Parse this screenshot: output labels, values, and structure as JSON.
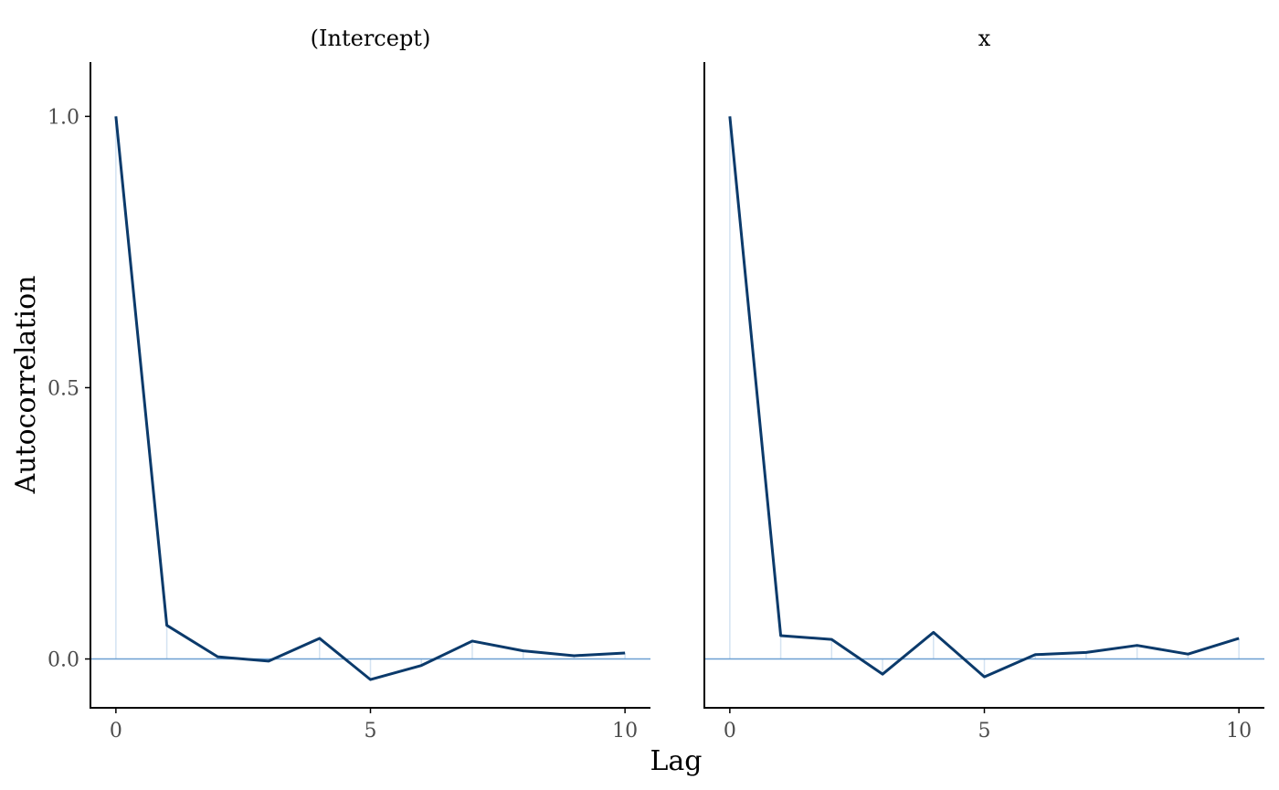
{
  "chart_data": [
    {
      "type": "line",
      "title": "(Intercept)",
      "xlabel": "Lag",
      "ylabel": "Autocorrelation",
      "x": [
        0,
        1,
        2,
        3,
        4,
        5,
        6,
        7,
        8,
        9,
        10
      ],
      "values": [
        1.0,
        0.062,
        0.004,
        -0.004,
        0.038,
        -0.038,
        -0.012,
        0.033,
        0.015,
        0.006,
        0.011
      ],
      "xlim": [
        -0.5,
        10.5
      ],
      "ylim": [
        -0.09,
        1.1
      ],
      "xticks": [
        0,
        5,
        10
      ],
      "yticks": [
        0.0,
        0.5,
        1.0
      ],
      "ytick_labels": [
        "0.0",
        "0.5",
        "1.0"
      ],
      "grid": false
    },
    {
      "type": "line",
      "title": "x",
      "xlabel": "Lag",
      "ylabel": "Autocorrelation",
      "x": [
        0,
        1,
        2,
        3,
        4,
        5,
        6,
        7,
        8,
        9,
        10
      ],
      "values": [
        1.0,
        0.043,
        0.036,
        -0.028,
        0.049,
        -0.033,
        0.008,
        0.012,
        0.025,
        0.009,
        0.038
      ],
      "xlim": [
        -0.5,
        10.5
      ],
      "ylim": [
        -0.09,
        1.1
      ],
      "xticks": [
        0,
        5,
        10
      ],
      "yticks": [
        0.0,
        0.5,
        1.0
      ],
      "ytick_labels": [
        "0.0",
        "0.5",
        "1.0"
      ],
      "grid": false
    }
  ],
  "colors": {
    "line": "#0b3a6b",
    "zero_line": "#6b9fd1",
    "spike": "#d4e3f2"
  },
  "labels": {
    "xlabel": "Lag",
    "ylabel": "Autocorrelation"
  }
}
